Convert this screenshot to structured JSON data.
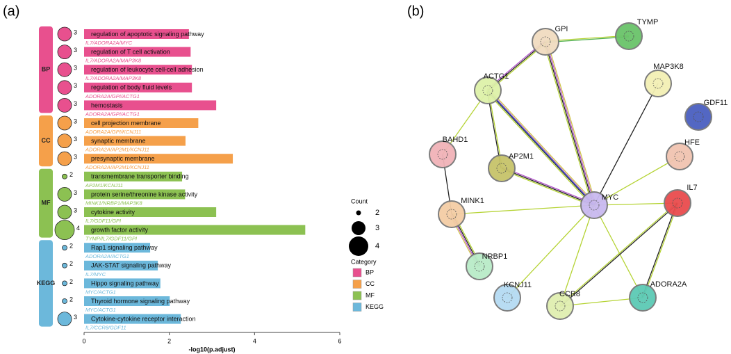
{
  "panel_labels": [
    "(a)",
    "(b)"
  ],
  "chart_data": {
    "type": "bar",
    "orientation": "horizontal",
    "xlabel": "-log10(p.adjust)",
    "xlim": [
      0,
      6
    ],
    "xticks": [
      0,
      2,
      4,
      6
    ],
    "count_legend_title": "Count",
    "count_legend": [
      2,
      3,
      4
    ],
    "category_legend_title": "Category",
    "series": [
      {
        "name": "BP",
        "color": "#e8508e",
        "categories": [
          "regulation of apoptotic signaling pathway",
          "regulation of T cell activation",
          "regulation of leukocyte cell-cell adhesion",
          "regulation of body fluid levels",
          "hemostasis"
        ],
        "genes": [
          "IL7/ADORA2A/MYC",
          "IL7/ADORA2A/MAP3K8",
          "IL7/ADORA2A/MAP3K8",
          "ADORA2A/GPI/ACTG1",
          "ADORA2A/GPI/ACTG1"
        ],
        "values": [
          2.46,
          2.5,
          2.53,
          2.53,
          3.1
        ],
        "counts": [
          3,
          3,
          3,
          3,
          3
        ]
      },
      {
        "name": "CC",
        "color": "#f5a04a",
        "categories": [
          "cell projection membrane",
          "synaptic membrane",
          "presynaptic membrane"
        ],
        "genes": [
          "ADORA2A/GPI/KCNJ11",
          "ADORA2A/AP2M1/KCNJ11",
          "ADORA2A/AP2M1/KCNJ11"
        ],
        "values": [
          2.68,
          2.38,
          3.49
        ],
        "counts": [
          3,
          3,
          3
        ]
      },
      {
        "name": "MF",
        "color": "#8cc152",
        "categories": [
          "transmembrane transporter binding",
          "protein serine/threonine kinase activity",
          "cytokine activity",
          "growth factor activity"
        ],
        "genes": [
          "AP2M1/KCNJ11",
          "MINK1/NRBP1/MAP3K8",
          "IL7/GDF11/GPI",
          "TYMP/IL7/GDF11/GPI"
        ],
        "values": [
          2.3,
          2.37,
          3.1,
          5.19
        ],
        "counts": [
          2,
          3,
          3,
          4
        ]
      },
      {
        "name": "KEGG",
        "color": "#6cb8db",
        "categories": [
          "Rap1 signaling pathway",
          "JAK-STAT signaling pathway",
          "Hippo signaling pathway",
          "Thyroid hormone signaling pathway",
          "Cytokine-cytokine receptor interaction"
        ],
        "genes": [
          "ADORA2A/ACTG1",
          "IL7/MYC",
          "MYC/ACTG1",
          "MYC/ACTG1",
          "IL7/CCR8/GDF11"
        ],
        "values": [
          1.55,
          1.73,
          1.79,
          2.01,
          2.27
        ],
        "counts": [
          2,
          2,
          2,
          2,
          3
        ]
      }
    ]
  },
  "network": {
    "nodes": [
      {
        "name": "GPI",
        "color": "#f1dcc0"
      },
      {
        "name": "TYMP",
        "color": "#6ac46a"
      },
      {
        "name": "MAP3K8",
        "color": "#f3f0b5"
      },
      {
        "name": "ACTG1",
        "color": "#def2a9"
      },
      {
        "name": "GDF11",
        "color": "#4a5fc0"
      },
      {
        "name": "BAHD1",
        "color": "#f1b3b8"
      },
      {
        "name": "HFE",
        "color": "#f1c4b0"
      },
      {
        "name": "AP2M1",
        "color": "#c7c46a"
      },
      {
        "name": "MYC",
        "color": "#c9b9f0"
      },
      {
        "name": "IL7",
        "color": "#e94b4e"
      },
      {
        "name": "MINK1",
        "color": "#f4cda5"
      },
      {
        "name": "NRBP1",
        "color": "#b9ecc8"
      },
      {
        "name": "KCNJ11",
        "color": "#b5dbf3"
      },
      {
        "name": "CCR8",
        "color": "#e0efb0"
      },
      {
        "name": "ADORA2A",
        "color": "#5ccab5"
      }
    ]
  }
}
